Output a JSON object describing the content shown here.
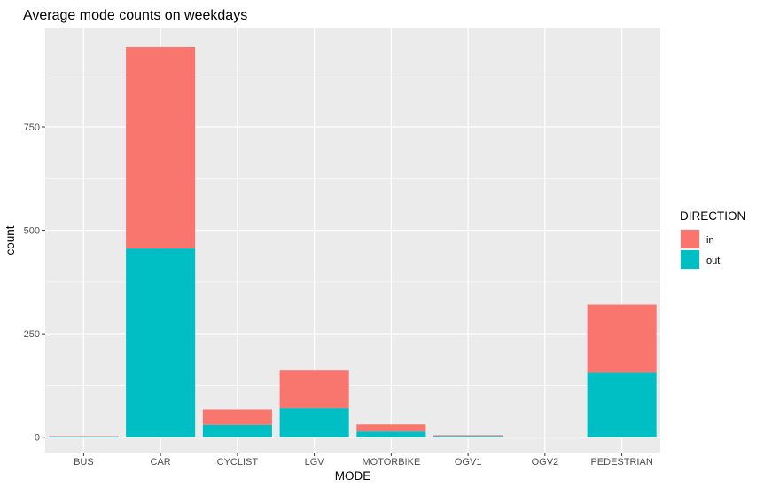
{
  "chart_data": {
    "type": "bar",
    "stacked": true,
    "title": "Average mode counts on weekdays",
    "xlabel": "MODE",
    "ylabel": "count",
    "categories": [
      "BUS",
      "CAR",
      "CYCLIST",
      "LGV",
      "MOTORBIKE",
      "OGV1",
      "OGV2",
      "PEDESTRIAN"
    ],
    "series": [
      {
        "name": "in",
        "color": "#F8766D",
        "values": [
          1,
          487,
          37,
          92,
          17,
          2,
          0,
          163
        ]
      },
      {
        "name": "out",
        "color": "#00BFC4",
        "values": [
          2,
          456,
          30,
          70,
          14,
          3,
          0,
          157
        ]
      }
    ],
    "ylim": [
      -37,
      988
    ],
    "yticks": [
      0,
      250,
      500,
      750
    ],
    "yticklabels": [
      "0",
      "250",
      "500",
      "750"
    ],
    "legend": {
      "title": "DIRECTION",
      "position": "right"
    },
    "grid": true,
    "panel_background": "#EBEBEB",
    "grid_color": "#FFFFFF"
  }
}
